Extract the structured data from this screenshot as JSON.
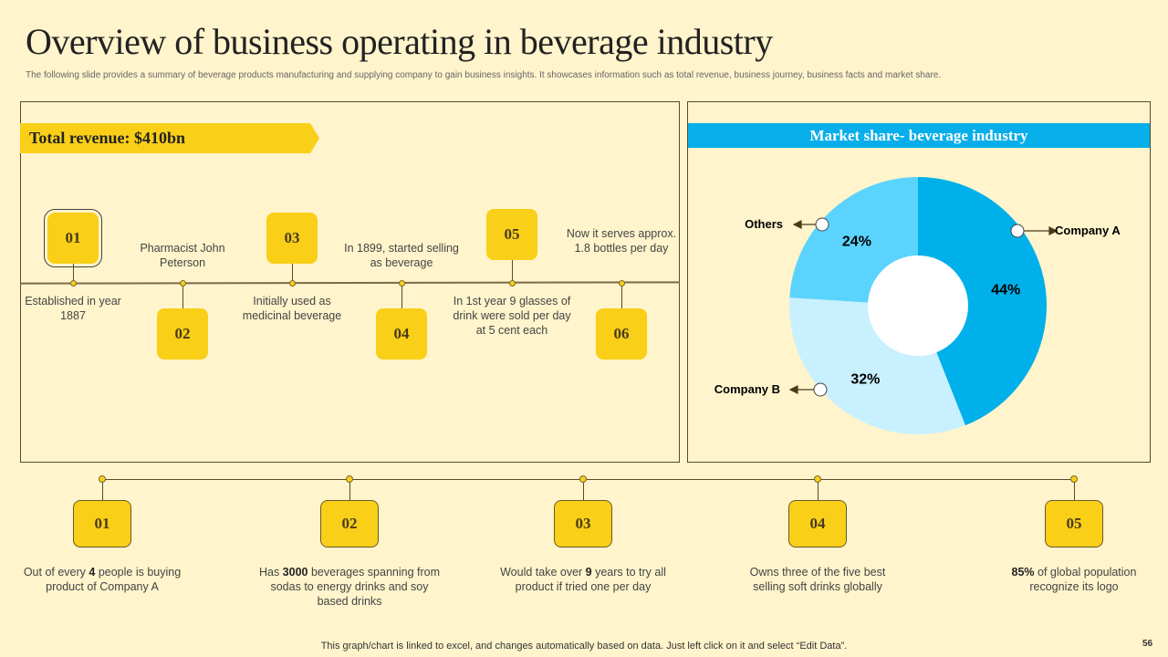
{
  "header": {
    "title": "Overview of business operating in beverage industry",
    "subtitle": "The following slide provides a summary of beverage products manufacturing and supplying company to gain business insights. It showcases information such as total revenue, business journey, business facts and market share."
  },
  "revenue": {
    "label": "Total revenue: $410bn"
  },
  "journey": [
    {
      "num": "01",
      "text": "Established in year 1887",
      "position": "below"
    },
    {
      "num": "02",
      "text": "Pharmacist John Peterson",
      "position": "above"
    },
    {
      "num": "03",
      "text": "Initially used as medicinal beverage",
      "position": "below"
    },
    {
      "num": "04",
      "text": "In 1899, started selling as beverage",
      "position": "above"
    },
    {
      "num": "05",
      "text": "In 1st year 9 glasses of drink were sold per day at 5 cent each",
      "position": "below"
    },
    {
      "num": "06",
      "text": "Now it serves approx. 1.8 bottles per day",
      "position": "above"
    }
  ],
  "market": {
    "title": "Market share- beverage industry"
  },
  "chart_data": {
    "type": "pie",
    "title": "Market share- beverage industry",
    "donut": true,
    "categories": [
      "Company A",
      "Company B",
      "Others"
    ],
    "values": [
      44,
      32,
      24
    ],
    "labels": [
      "44%",
      "32%",
      "24%"
    ],
    "colors": [
      "#00B0EA",
      "#C9F0FF",
      "#5AD4FF"
    ]
  },
  "facts": [
    {
      "num": "01",
      "pre": "Out of every ",
      "bold": "4",
      "post": " people is buying product of Company A"
    },
    {
      "num": "02",
      "pre": "Has ",
      "bold": "3000",
      "post": " beverages spanning from sodas to energy drinks and soy based drinks"
    },
    {
      "num": "03",
      "pre": "Would take over ",
      "bold": "9",
      "post": " years to try all product if tried one per day"
    },
    {
      "num": "04",
      "pre": "Owns three of the five best selling soft drinks globally",
      "bold": "",
      "post": ""
    },
    {
      "num": "05",
      "pre": "",
      "bold": "85%",
      "post": " of global population recognize its logo"
    }
  ],
  "footer": {
    "note": "This graph/chart is linked to excel, and changes automatically based on data. Just left click on it and select “Edit Data”.",
    "page": "56"
  }
}
